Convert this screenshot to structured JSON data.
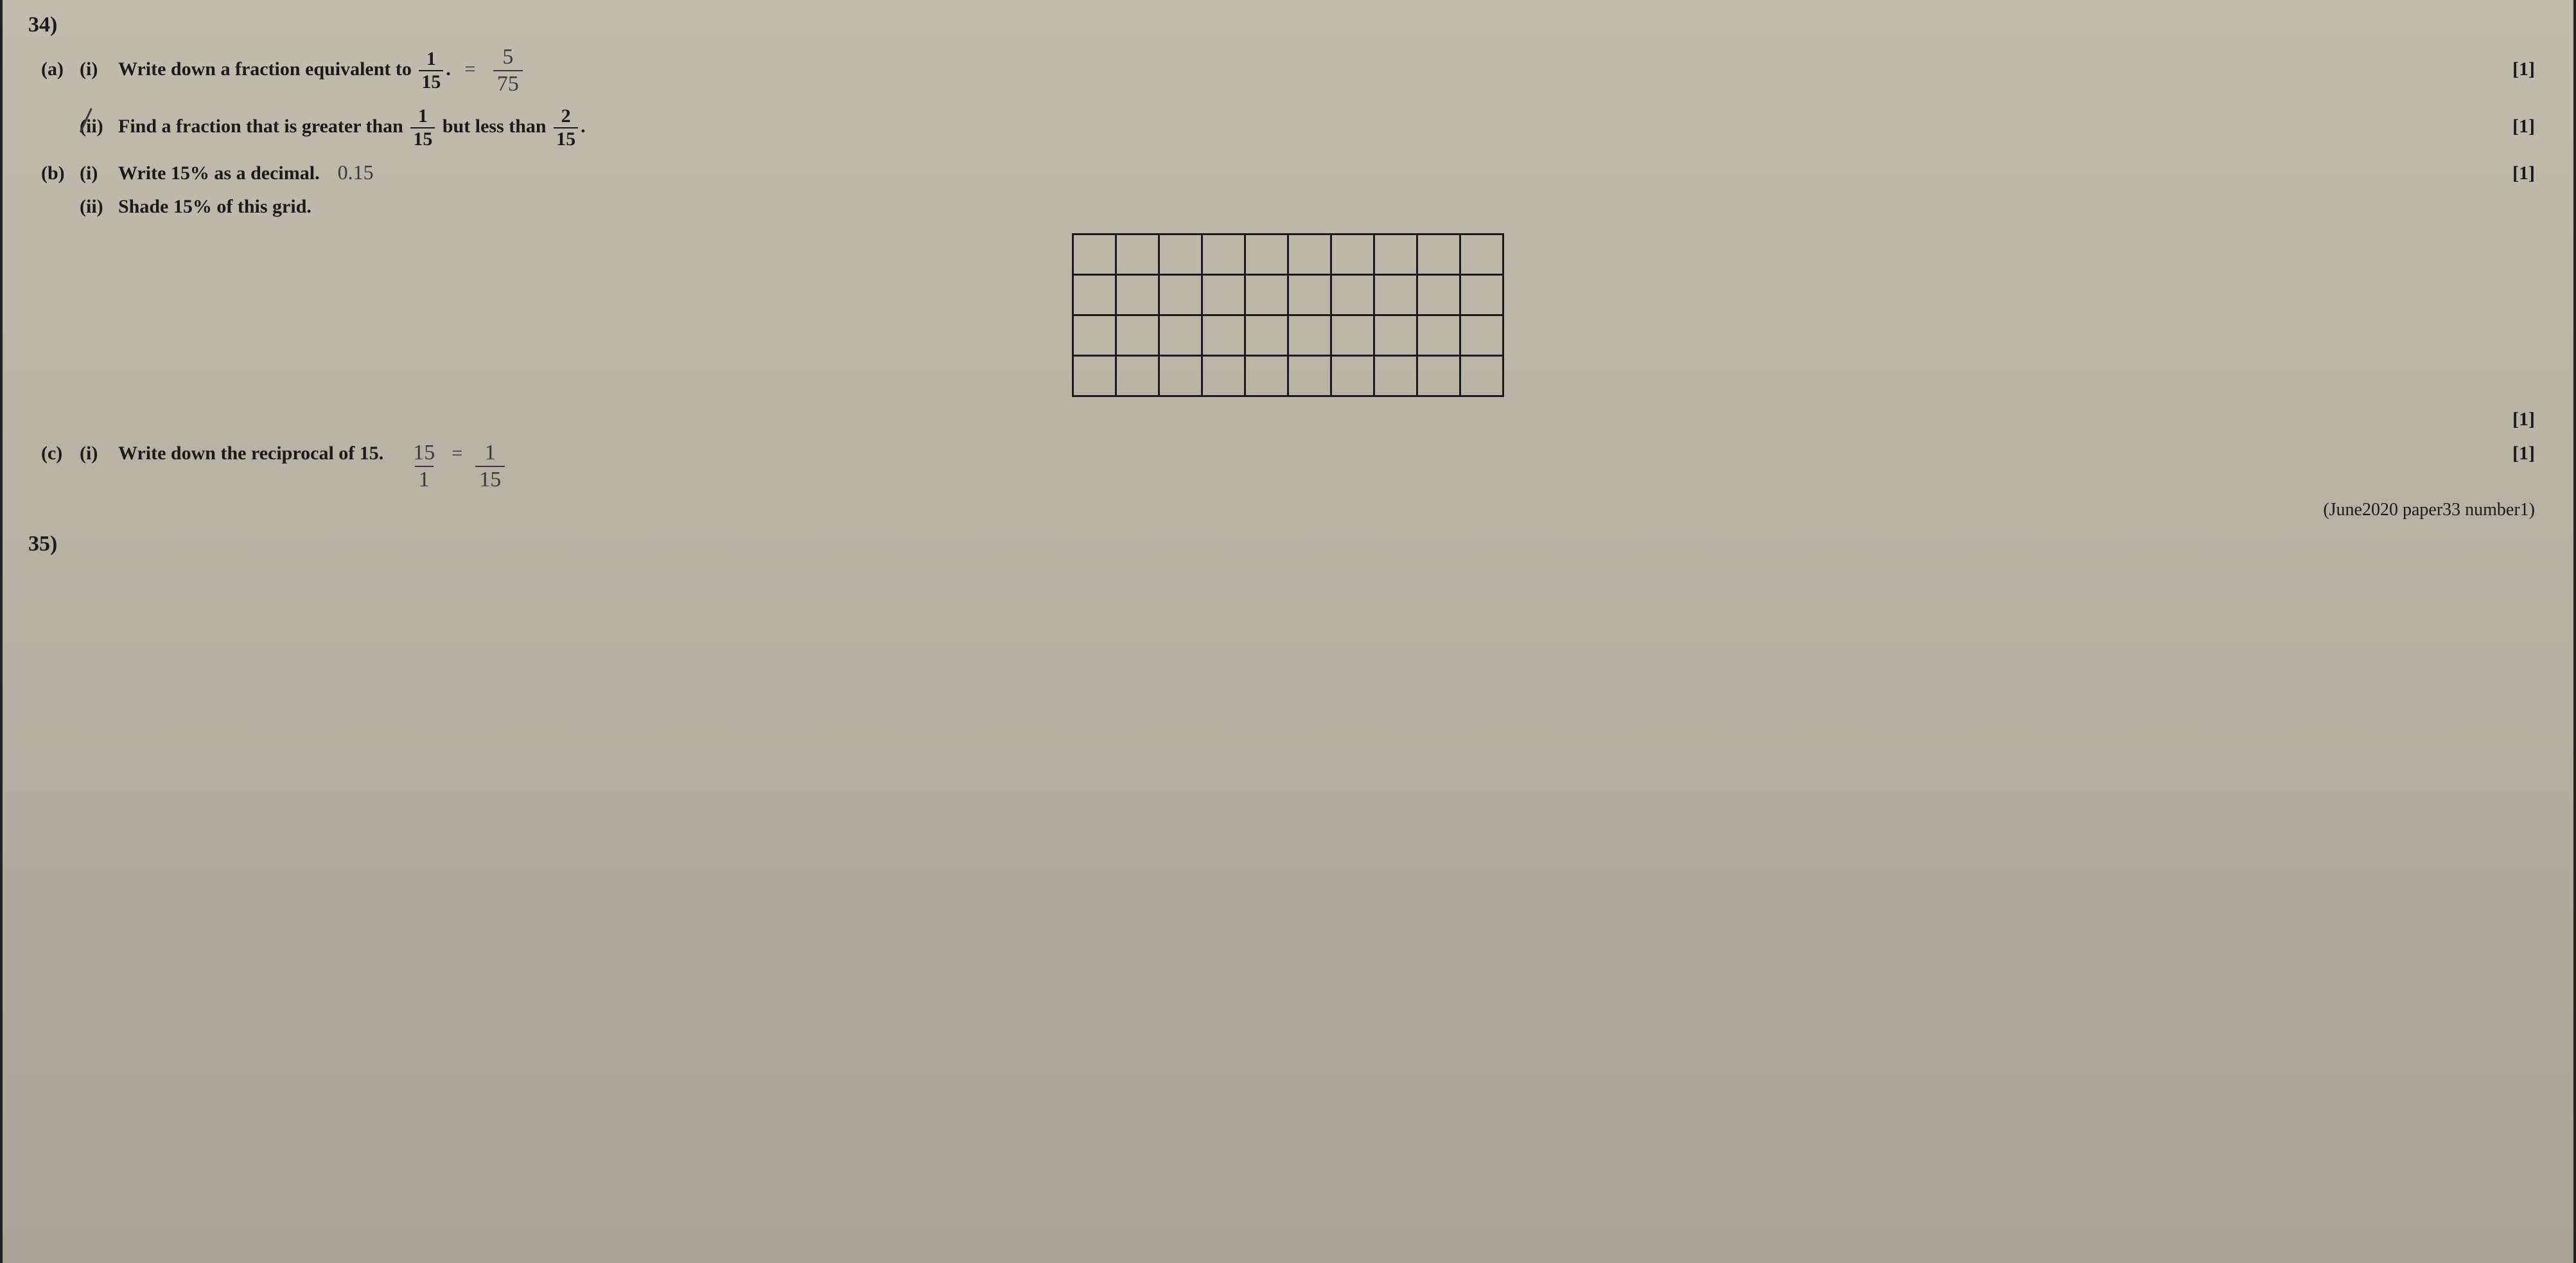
{
  "question_top": "34)",
  "a": {
    "label": "(a)",
    "i": {
      "label": "(i)",
      "text_before": "Write down a fraction equivalent to ",
      "frac_num": "1",
      "frac_den": "15",
      "period": ".",
      "hw_equals": "=",
      "hw_num": "5",
      "hw_den": "75",
      "marks": "[1]"
    },
    "ii": {
      "label": "(ii)",
      "text_before": "Find a fraction that is greater than ",
      "frac1_num": "1",
      "frac1_den": "15",
      "text_mid": " but less than ",
      "frac2_num": "2",
      "frac2_den": "15",
      "period": ".",
      "marks": "[1]"
    }
  },
  "b": {
    "label": "(b)",
    "i": {
      "label": "(i)",
      "text": "Write 15% as a decimal.",
      "hw_answer": "0.15",
      "marks": "[1]"
    },
    "ii": {
      "label": "(ii)",
      "text": "Shade 15% of this grid.",
      "grid_rows": 4,
      "grid_cols": 10,
      "marks": "[1]"
    }
  },
  "c": {
    "label": "(c)",
    "i": {
      "label": "(i)",
      "text": "Write down the reciprocal of 15.",
      "hw_left_num": "15",
      "hw_left_den": "1",
      "hw_equals": "=",
      "hw_right_num": "1",
      "hw_right_den": "15",
      "marks": "[1]"
    }
  },
  "source": "(June2020 paper33 number1)",
  "question_bottom": "35)"
}
